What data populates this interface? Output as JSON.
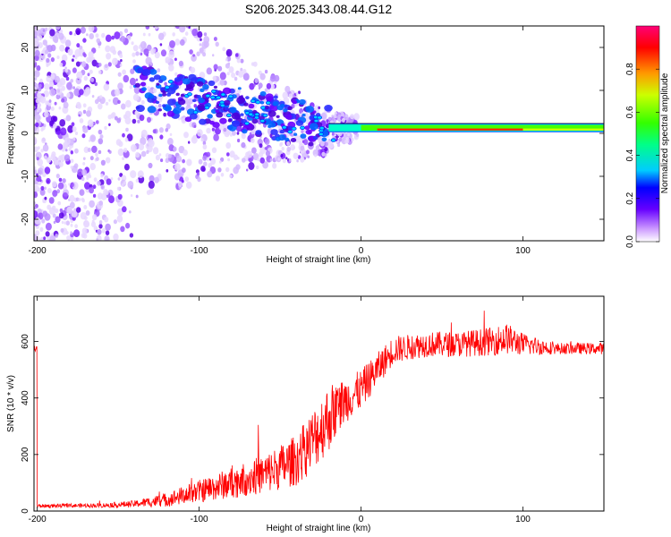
{
  "title": "S206.2025.343.08.44.G12",
  "chart_data": [
    {
      "type": "heatmap",
      "name": "spectrogram",
      "xlabel": "Height of straight line (km)",
      "ylabel": "Frequency (Hz)",
      "xlim": [
        -202,
        150
      ],
      "ylim": [
        -25,
        25
      ],
      "x_ticks": [
        -200,
        -100,
        0,
        100
      ],
      "y_ticks": [
        -20,
        -10,
        0,
        10,
        20
      ],
      "y_tick_labels": [
        "-20",
        "-10",
        "0",
        "10",
        "20"
      ],
      "colorbar": {
        "label": "Normalized spectral amplitude",
        "range": [
          0,
          1
        ],
        "ticks": [
          0.0,
          0.2,
          0.4,
          0.6,
          0.8
        ],
        "tick_labels": [
          "0.0",
          "0.2",
          "0.4",
          "0.6",
          "0.8"
        ]
      },
      "description_features": {
        "noise_region_x": [
          -200,
          -140
        ],
        "transition_region_x": [
          -140,
          -20
        ],
        "line_region_x": [
          -20,
          150
        ],
        "line_frequency_hz": 1,
        "line_frequency_upper_hz": 2
      }
    },
    {
      "type": "line",
      "name": "snr",
      "xlabel": "Height of straight line (km)",
      "ylabel": "SNR (10 * v/v)",
      "xlim": [
        -202,
        150
      ],
      "ylim": [
        0,
        760
      ],
      "x_ticks": [
        -200,
        -100,
        0,
        100
      ],
      "y_ticks": [
        0,
        200,
        400,
        600
      ],
      "color": "#ff0000",
      "trend_x": [
        -200,
        -160,
        -140,
        -120,
        -100,
        -80,
        -60,
        -40,
        -30,
        -20,
        -10,
        0,
        10,
        20,
        30,
        40,
        60,
        80,
        90,
        100,
        120,
        150
      ],
      "trend_y": [
        18,
        20,
        25,
        40,
        70,
        100,
        130,
        180,
        250,
        330,
        390,
        430,
        500,
        570,
        580,
        590,
        590,
        600,
        610,
        590,
        575,
        575
      ],
      "noise_amplitude": [
        6,
        8,
        12,
        25,
        40,
        55,
        70,
        90,
        110,
        120,
        80,
        70,
        60,
        50,
        45,
        45,
        45,
        50,
        55,
        40,
        20,
        20
      ]
    }
  ]
}
